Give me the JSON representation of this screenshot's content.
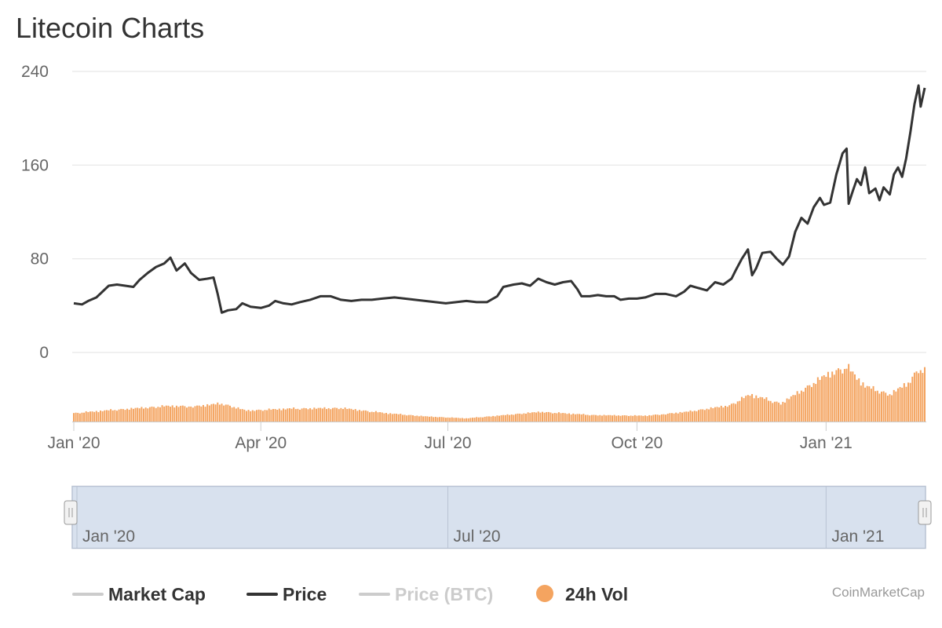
{
  "chart_data": {
    "title": "Litecoin Charts",
    "type": "line",
    "x_range": [
      "2020-01-01",
      "2021-02-18"
    ],
    "y_axis": {
      "ticks": [
        0,
        80,
        160,
        240
      ],
      "range": [
        0,
        240
      ],
      "grid": true
    },
    "x_ticks": [
      {
        "date": "2020-01-01",
        "label": "Jan '20"
      },
      {
        "date": "2020-04-01",
        "label": "Apr '20"
      },
      {
        "date": "2020-07-01",
        "label": "Jul '20"
      },
      {
        "date": "2020-10-01",
        "label": "Oct '20"
      },
      {
        "date": "2021-01-01",
        "label": "Jan '21"
      }
    ],
    "series": [
      {
        "name": "Price",
        "type": "line",
        "points": [
          [
            "2020-01-01",
            42
          ],
          [
            "2020-01-05",
            41
          ],
          [
            "2020-01-08",
            44
          ],
          [
            "2020-01-12",
            47
          ],
          [
            "2020-01-15",
            52
          ],
          [
            "2020-01-18",
            57
          ],
          [
            "2020-01-22",
            58
          ],
          [
            "2020-01-26",
            57
          ],
          [
            "2020-01-30",
            56
          ],
          [
            "2020-02-02",
            62
          ],
          [
            "2020-02-06",
            68
          ],
          [
            "2020-02-10",
            73
          ],
          [
            "2020-02-14",
            76
          ],
          [
            "2020-02-17",
            81
          ],
          [
            "2020-02-20",
            70
          ],
          [
            "2020-02-24",
            76
          ],
          [
            "2020-02-27",
            68
          ],
          [
            "2020-03-02",
            62
          ],
          [
            "2020-03-06",
            63
          ],
          [
            "2020-03-09",
            64
          ],
          [
            "2020-03-11",
            50
          ],
          [
            "2020-03-13",
            34
          ],
          [
            "2020-03-16",
            36
          ],
          [
            "2020-03-20",
            37
          ],
          [
            "2020-03-23",
            42
          ],
          [
            "2020-03-27",
            39
          ],
          [
            "2020-04-01",
            38
          ],
          [
            "2020-04-05",
            40
          ],
          [
            "2020-04-08",
            44
          ],
          [
            "2020-04-12",
            42
          ],
          [
            "2020-04-16",
            41
          ],
          [
            "2020-04-20",
            43
          ],
          [
            "2020-04-25",
            45
          ],
          [
            "2020-04-30",
            48
          ],
          [
            "2020-05-05",
            48
          ],
          [
            "2020-05-10",
            45
          ],
          [
            "2020-05-15",
            44
          ],
          [
            "2020-05-20",
            45
          ],
          [
            "2020-05-25",
            45
          ],
          [
            "2020-05-30",
            46
          ],
          [
            "2020-06-05",
            47
          ],
          [
            "2020-06-10",
            46
          ],
          [
            "2020-06-15",
            45
          ],
          [
            "2020-06-20",
            44
          ],
          [
            "2020-06-25",
            43
          ],
          [
            "2020-06-30",
            42
          ],
          [
            "2020-07-05",
            43
          ],
          [
            "2020-07-10",
            44
          ],
          [
            "2020-07-15",
            43
          ],
          [
            "2020-07-20",
            43
          ],
          [
            "2020-07-25",
            48
          ],
          [
            "2020-07-28",
            56
          ],
          [
            "2020-08-02",
            58
          ],
          [
            "2020-08-06",
            59
          ],
          [
            "2020-08-10",
            57
          ],
          [
            "2020-08-14",
            63
          ],
          [
            "2020-08-18",
            60
          ],
          [
            "2020-08-22",
            58
          ],
          [
            "2020-08-26",
            60
          ],
          [
            "2020-08-30",
            61
          ],
          [
            "2020-09-02",
            54
          ],
          [
            "2020-09-04",
            48
          ],
          [
            "2020-09-08",
            48
          ],
          [
            "2020-09-12",
            49
          ],
          [
            "2020-09-16",
            48
          ],
          [
            "2020-09-20",
            48
          ],
          [
            "2020-09-23",
            45
          ],
          [
            "2020-09-27",
            46
          ],
          [
            "2020-10-01",
            46
          ],
          [
            "2020-10-05",
            47
          ],
          [
            "2020-10-10",
            50
          ],
          [
            "2020-10-15",
            50
          ],
          [
            "2020-10-20",
            48
          ],
          [
            "2020-10-24",
            52
          ],
          [
            "2020-10-27",
            57
          ],
          [
            "2020-10-31",
            55
          ],
          [
            "2020-11-04",
            53
          ],
          [
            "2020-11-08",
            60
          ],
          [
            "2020-11-12",
            58
          ],
          [
            "2020-11-16",
            63
          ],
          [
            "2020-11-18",
            70
          ],
          [
            "2020-11-21",
            80
          ],
          [
            "2020-11-24",
            88
          ],
          [
            "2020-11-26",
            66
          ],
          [
            "2020-11-28",
            72
          ],
          [
            "2020-12-01",
            85
          ],
          [
            "2020-12-05",
            86
          ],
          [
            "2020-12-08",
            80
          ],
          [
            "2020-12-11",
            75
          ],
          [
            "2020-12-14",
            82
          ],
          [
            "2020-12-17",
            103
          ],
          [
            "2020-12-20",
            115
          ],
          [
            "2020-12-23",
            110
          ],
          [
            "2020-12-26",
            124
          ],
          [
            "2020-12-29",
            132
          ],
          [
            "2020-12-31",
            126
          ],
          [
            "2021-01-03",
            128
          ],
          [
            "2021-01-06",
            152
          ],
          [
            "2021-01-09",
            170
          ],
          [
            "2021-01-11",
            174
          ],
          [
            "2021-01-12",
            127
          ],
          [
            "2021-01-14",
            138
          ],
          [
            "2021-01-16",
            148
          ],
          [
            "2021-01-18",
            143
          ],
          [
            "2021-01-20",
            158
          ],
          [
            "2021-01-22",
            136
          ],
          [
            "2021-01-25",
            140
          ],
          [
            "2021-01-27",
            130
          ],
          [
            "2021-01-29",
            141
          ],
          [
            "2021-02-01",
            135
          ],
          [
            "2021-02-03",
            152
          ],
          [
            "2021-02-05",
            158
          ],
          [
            "2021-02-07",
            150
          ],
          [
            "2021-02-09",
            166
          ],
          [
            "2021-02-11",
            188
          ],
          [
            "2021-02-13",
            212
          ],
          [
            "2021-02-15",
            228
          ],
          [
            "2021-02-16",
            210
          ],
          [
            "2021-02-18",
            226
          ]
        ]
      },
      {
        "name": "24h Vol",
        "type": "bar",
        "relative": true,
        "anchors": [
          [
            "2020-01-01",
            0.13
          ],
          [
            "2020-01-20",
            0.18
          ],
          [
            "2020-02-15",
            0.24
          ],
          [
            "2020-03-01",
            0.24
          ],
          [
            "2020-03-13",
            0.28
          ],
          [
            "2020-03-25",
            0.17
          ],
          [
            "2020-04-15",
            0.2
          ],
          [
            "2020-05-10",
            0.21
          ],
          [
            "2020-06-01",
            0.13
          ],
          [
            "2020-06-20",
            0.08
          ],
          [
            "2020-07-10",
            0.05
          ],
          [
            "2020-07-25",
            0.09
          ],
          [
            "2020-08-15",
            0.15
          ],
          [
            "2020-09-10",
            0.1
          ],
          [
            "2020-10-05",
            0.09
          ],
          [
            "2020-10-25",
            0.15
          ],
          [
            "2020-11-15",
            0.25
          ],
          [
            "2020-11-25",
            0.42
          ],
          [
            "2020-12-10",
            0.28
          ],
          [
            "2020-12-20",
            0.48
          ],
          [
            "2021-01-01",
            0.72
          ],
          [
            "2021-01-11",
            0.85
          ],
          [
            "2021-01-20",
            0.55
          ],
          [
            "2021-02-01",
            0.42
          ],
          [
            "2021-02-10",
            0.6
          ],
          [
            "2021-02-15",
            0.82
          ],
          [
            "2021-02-18",
            0.78
          ]
        ]
      },
      {
        "name": "Market Cap",
        "type": "line",
        "hidden": true
      },
      {
        "name": "Price (BTC)",
        "type": "line",
        "hidden": true
      }
    ],
    "navigator": {
      "ticks": [
        {
          "date": "2020-01-01",
          "label": "Jan '20"
        },
        {
          "date": "2020-07-01",
          "label": "Jul '20"
        },
        {
          "date": "2021-01-01",
          "label": "Jan '21"
        }
      ]
    },
    "legend": [
      {
        "label": "Market Cap",
        "symbol": "line",
        "color": "#cccccc",
        "text_color": "#333333"
      },
      {
        "label": "Price",
        "symbol": "line",
        "color": "#333333",
        "text_color": "#333333"
      },
      {
        "label": "Price (BTC)",
        "symbol": "line",
        "color": "#cccccc",
        "text_color": "#cccccc"
      },
      {
        "label": "24h Vol",
        "symbol": "circle",
        "color": "#f4a460",
        "text_color": "#333333"
      }
    ],
    "credits": "CoinMarketCap",
    "colors": {
      "price": "#333333",
      "volume": "#f4a460",
      "grid": "#e6e6e6",
      "navigator_fill": "#d8e1ee",
      "navigator_border": "#b9c3d3"
    }
  }
}
